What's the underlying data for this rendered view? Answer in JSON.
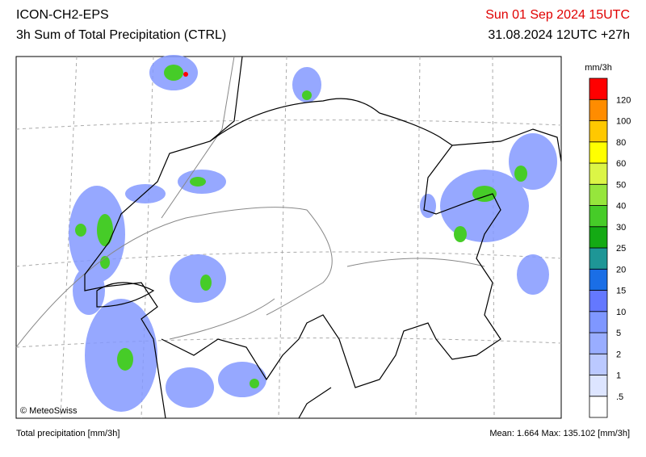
{
  "header": {
    "model": "ICON-CH2-EPS",
    "product": "3h Sum of Total Precipitation (CTRL)",
    "valid": "Sun 01 Sep 2024 15UTC",
    "run": "31.08.2024 12UTC +27h"
  },
  "legend": {
    "unit": "mm/3h",
    "levels": [
      ".5",
      "1",
      "2",
      "5",
      "10",
      "15",
      "20",
      "25",
      "30",
      "40",
      "50",
      "60",
      "80",
      "100",
      "120"
    ],
    "colors": [
      "#ffffff",
      "#dde5ff",
      "#bbc9ff",
      "#99adff",
      "#7f97ff",
      "#6478ff",
      "#1a6ee6",
      "#1e9696",
      "#14aa14",
      "#46cc28",
      "#96e63c",
      "#dcf546",
      "#ffff00",
      "#ffc800",
      "#ff8c00",
      "#ff0000"
    ]
  },
  "map": {
    "credit": "© MeteoSwiss"
  },
  "footer": {
    "left": "Total precipitation [mm/3h]",
    "stats": "Mean:  1.664 Max: 135.102 [mm/3h]"
  }
}
